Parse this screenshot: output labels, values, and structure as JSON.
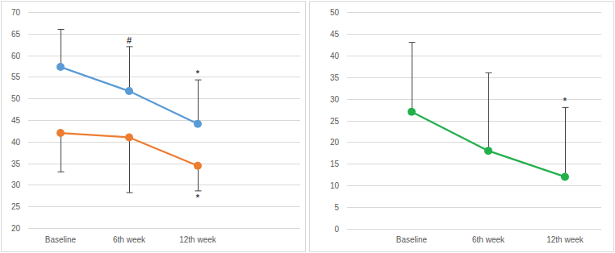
{
  "chart_data": [
    {
      "type": "line",
      "grid": true,
      "categories": [
        "Baseline",
        "6th week",
        "12th week"
      ],
      "ylim": [
        20,
        70
      ],
      "yticks": [
        20,
        25,
        30,
        35,
        40,
        45,
        50,
        55,
        60,
        65,
        70
      ],
      "series": [
        {
          "color": "#5b9bd5",
          "marker": "circle",
          "values": [
            57.3,
            51.7,
            44.1
          ],
          "errors_upper": [
            8.7,
            10.3,
            10.2
          ]
        },
        {
          "color": "#ed7d31",
          "marker": "circle",
          "values": [
            42,
            41,
            34.4
          ],
          "errors_lower": [
            9,
            12.8,
            5.8
          ]
        }
      ],
      "annotations": [
        {
          "text": "#",
          "series": 0,
          "index": 1
        },
        {
          "text": "*",
          "series": 0,
          "index": 2
        },
        {
          "text": "*",
          "series": 1,
          "index": 2
        }
      ]
    },
    {
      "type": "line",
      "grid": true,
      "categories": [
        "Baseline",
        "6th week",
        "12th week"
      ],
      "ylim": [
        0,
        50
      ],
      "yticks": [
        0,
        5,
        10,
        15,
        20,
        25,
        30,
        35,
        40,
        45,
        50
      ],
      "series": [
        {
          "color": "#21b04b",
          "marker": "circle",
          "values": [
            27,
            18,
            12
          ],
          "errors_upper": [
            16,
            18,
            16
          ]
        }
      ],
      "annotations": [
        {
          "text": "*",
          "series": 0,
          "index": 2
        }
      ]
    }
  ]
}
